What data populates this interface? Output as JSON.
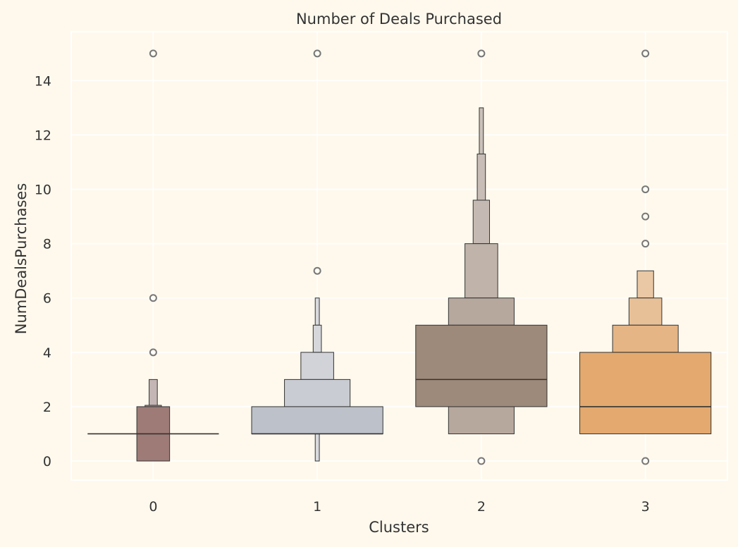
{
  "chart_data": {
    "type": "boxen",
    "title": "Number of Deals Purchased",
    "xlabel": "Clusters",
    "ylabel": "NumDealsPurchases",
    "categories": [
      "0",
      "1",
      "2",
      "3"
    ],
    "ylim": [
      -0.7,
      15.8
    ],
    "yticks": [
      0,
      2,
      4,
      6,
      8,
      10,
      12,
      14
    ],
    "grid": true,
    "background_color": "#FFF9ED",
    "grid_color": "#FFFFFF",
    "edge_color": "#333333",
    "series": [
      {
        "category": "0",
        "median": 1,
        "boxes": [
          {
            "low": 0,
            "high": 2,
            "width_fraction": 0.2,
            "color": "#9E7B76"
          },
          {
            "low": 2,
            "high": 2.05,
            "width_fraction": 0.1,
            "color": "#B5A3A1"
          },
          {
            "low": 2.05,
            "high": 3,
            "width_fraction": 0.05,
            "color": "#C3B6B4"
          }
        ],
        "outliers": [
          4,
          6,
          15
        ]
      },
      {
        "category": "1",
        "median": 1,
        "boxes": [
          {
            "low": 1,
            "high": 2,
            "width_fraction": 0.8,
            "color": "#BDC1C9"
          },
          {
            "low": 2,
            "high": 3,
            "width_fraction": 0.4,
            "color": "#C9CCD2"
          },
          {
            "low": 3,
            "high": 4,
            "width_fraction": 0.2,
            "color": "#D1D3D8"
          },
          {
            "low": 4,
            "high": 5,
            "width_fraction": 0.05,
            "color": "#D6D7DB"
          },
          {
            "low": 0,
            "high": 1,
            "width_fraction": 0.025,
            "color": "#D9DADE"
          },
          {
            "low": 5,
            "high": 6,
            "width_fraction": 0.025,
            "color": "#D9DADE"
          }
        ],
        "outliers": [
          7,
          15
        ]
      },
      {
        "category": "2",
        "median": 3,
        "boxes": [
          {
            "low": 2,
            "high": 5,
            "width_fraction": 0.8,
            "color": "#9E8A7A"
          },
          {
            "low": 1,
            "high": 2,
            "width_fraction": 0.4,
            "color": "#B7A89D"
          },
          {
            "low": 5,
            "high": 6,
            "width_fraction": 0.4,
            "color": "#B7A89D"
          },
          {
            "low": 6,
            "high": 8,
            "width_fraction": 0.2,
            "color": "#BFB3AA"
          },
          {
            "low": 8,
            "high": 9.6,
            "width_fraction": 0.1,
            "color": "#C5BAB3"
          },
          {
            "low": 9.6,
            "high": 11.3,
            "width_fraction": 0.05,
            "color": "#C8BEB7"
          },
          {
            "low": 11.3,
            "high": 13,
            "width_fraction": 0.025,
            "color": "#CAC1BB"
          }
        ],
        "outliers": [
          0,
          15
        ]
      },
      {
        "category": "3",
        "median": 2,
        "boxes": [
          {
            "low": 1,
            "high": 4,
            "width_fraction": 0.8,
            "color": "#E3A96E"
          },
          {
            "low": 4,
            "high": 5,
            "width_fraction": 0.4,
            "color": "#E5B585"
          },
          {
            "low": 5,
            "high": 6,
            "width_fraction": 0.2,
            "color": "#E8C097"
          },
          {
            "low": 6,
            "high": 7,
            "width_fraction": 0.1,
            "color": "#EAC8A5"
          }
        ],
        "outliers": [
          0,
          8,
          9,
          10,
          15
        ]
      }
    ]
  }
}
